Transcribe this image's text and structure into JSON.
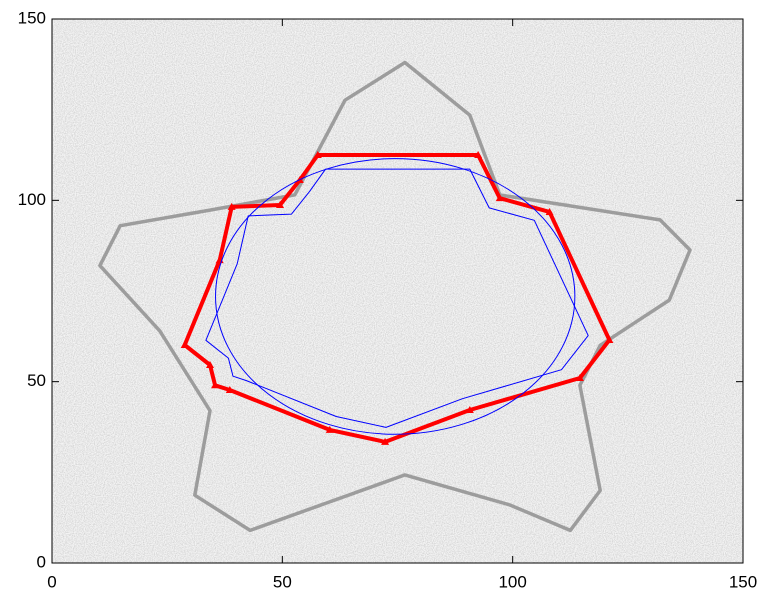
{
  "chart_data": {
    "type": "contour",
    "xlim": [
      0,
      150
    ],
    "ylim": [
      0,
      150
    ],
    "xticks": [
      0,
      50,
      100,
      150
    ],
    "yticks": [
      0,
      50,
      100,
      150
    ],
    "series": [
      {
        "color": "#8a8a8a",
        "closed": true,
        "x": [
          76.6,
          90.7,
          97.2,
          132,
          138.5,
          134,
          119,
          114.6,
          119,
          112.5,
          99.4,
          76.6,
          43,
          31,
          34.3,
          23.4,
          10.4,
          14.8,
          34.3,
          52.7,
          63.6
        ],
        "y": [
          138,
          123.5,
          101.5,
          94.6,
          86.3,
          72.5,
          60,
          49,
          20,
          9,
          16,
          24.3,
          9,
          18.7,
          42,
          64,
          82,
          93,
          97.3,
          101.5,
          127.6
        ]
      },
      {
        "color": "#0000ff",
        "closed": true,
        "x": [
          59.4,
          90.7,
          94.9,
          104.7,
          116.4,
          110.6,
          89.1,
          72.5,
          61.7,
          42.2,
          39.3,
          38.3,
          33.4,
          40.2,
          42.6,
          52,
          55.9
        ],
        "y": [
          108.6,
          108.6,
          97.9,
          94.5,
          62.7,
          53.3,
          45.3,
          37.4,
          40.4,
          50.3,
          51.5,
          56.5,
          61.4,
          82.5,
          95.7,
          96.2,
          102.4
        ]
      },
      {
        "color": "#ff0000",
        "closed": true,
        "markers": true,
        "x": [
          57.7,
          92.5,
          97.2,
          108,
          121,
          114.6,
          90.7,
          72.3,
          60.3,
          38.6,
          35.4,
          34.3,
          28.8,
          36.4,
          39,
          49.5,
          53.8
        ],
        "y": [
          112.5,
          112.5,
          100.6,
          96.8,
          61.5,
          51,
          42.2,
          33.4,
          36.7,
          47.7,
          49,
          54.6,
          60.1,
          83.5,
          98.2,
          98.7,
          105.6
        ]
      }
    ],
    "ellipse": {
      "color": "#0000ff",
      "center": [
        74.5,
        73.5
      ],
      "radii": [
        39,
        38
      ]
    }
  }
}
